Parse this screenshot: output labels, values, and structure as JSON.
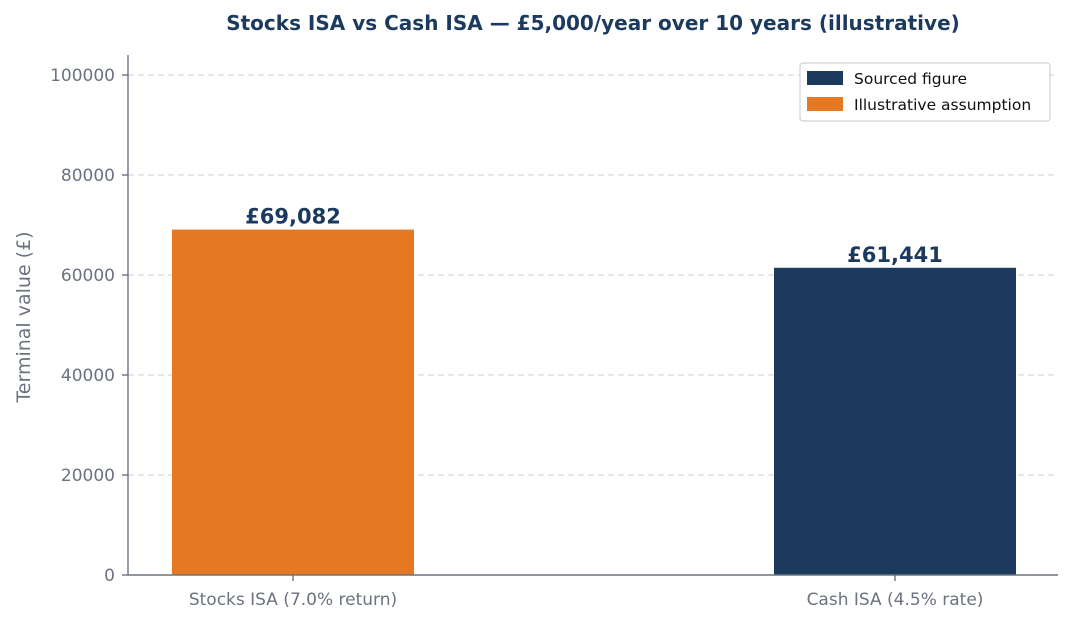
{
  "colors": {
    "sourced": "#1b3a5e",
    "illustrative": "#e67821",
    "text_muted": "#6b7280",
    "title": "#1b3a5e"
  },
  "legend": {
    "position": "top-right",
    "items": [
      {
        "label": "Sourced figure",
        "color": "#1b3a5e"
      },
      {
        "label": "Illustrative assumption",
        "color": "#e67821"
      }
    ]
  },
  "chart_data": {
    "type": "bar",
    "title": "Stocks ISA vs Cash ISA — £5,000/year over 10 years (illustrative)",
    "xlabel": "",
    "ylabel": "Terminal value (£)",
    "ylim": [
      0,
      104000
    ],
    "yticks": [
      0,
      20000,
      40000,
      60000,
      80000,
      100000
    ],
    "grid": "horizontal-dashed",
    "categories": [
      "Stocks ISA (7.0% return)",
      "Cash ISA (4.5% rate)"
    ],
    "values": [
      69082,
      61441
    ],
    "value_labels": [
      "£69,082",
      "£61,441"
    ],
    "bar_types": [
      "Illustrative assumption",
      "Sourced figure"
    ],
    "bar_colors": [
      "#e67821",
      "#1b3a5e"
    ]
  }
}
